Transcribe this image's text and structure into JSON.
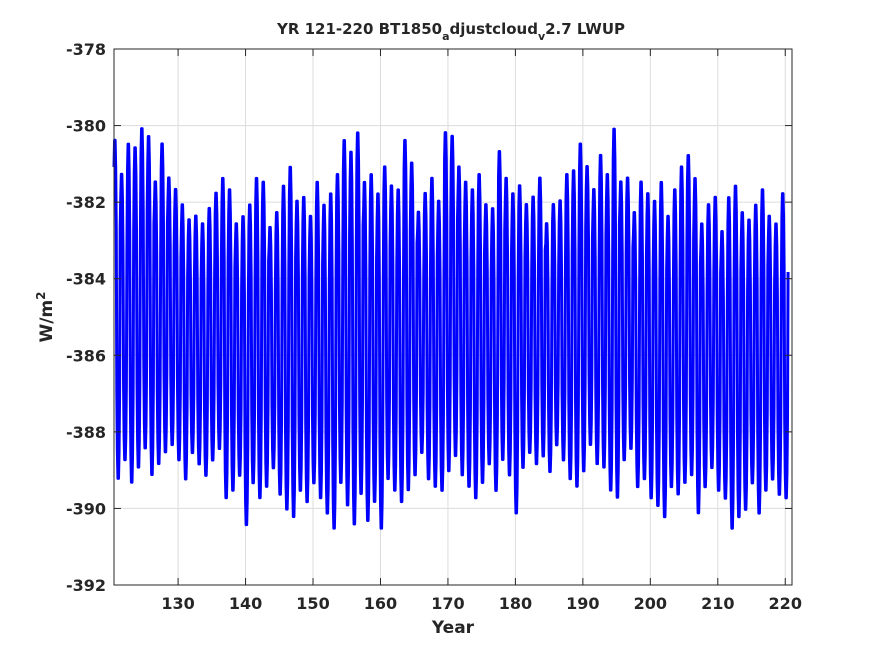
{
  "chart_data": {
    "type": "line",
    "title": {
      "main": "YR 121-220 BT1850",
      "sub1": "a",
      "mid": "djustcloud",
      "sub2": "v",
      "tail": "2.7 LWUP"
    },
    "xlabel": "Year",
    "ylabel": {
      "base": "W/m",
      "sup": "2"
    },
    "xlim": [
      120.5,
      221
    ],
    "ylim": [
      -392,
      -378
    ],
    "xticks": [
      130,
      140,
      150,
      160,
      170,
      180,
      190,
      200,
      210,
      220
    ],
    "xtick_labels": [
      "130",
      "140",
      "150",
      "160",
      "170",
      "180",
      "190",
      "200",
      "210",
      "220"
    ],
    "yticks": [
      -392,
      -390,
      -388,
      -386,
      -384,
      -382,
      -380,
      -378
    ],
    "ytick_labels": [
      "-392",
      "-390",
      "-388",
      "-386",
      "-384",
      "-382",
      "-380",
      "-378"
    ],
    "grid": true,
    "series_color": "#0000ff",
    "series": [
      {
        "note_frequency": "monthly",
        "x_start": 120.5,
        "annual_peaks": [
          -380.3,
          -381.2,
          -380.4,
          -380.5,
          -380.0,
          -380.2,
          -381.4,
          -380.4,
          -381.3,
          -381.6,
          -382.0,
          -382.4,
          -382.3,
          -382.5,
          -382.1,
          -381.7,
          -381.3,
          -381.6,
          -382.5,
          -382.3,
          -382.0,
          -381.3,
          -381.4,
          -382.6,
          -382.2,
          -381.5,
          -381.0,
          -381.9,
          -381.8,
          -382.3,
          -381.4,
          -382.0,
          -381.7,
          -381.2,
          -380.3,
          -380.6,
          -380.1,
          -381.4,
          -381.2,
          -381.7,
          -381.0,
          -381.5,
          -381.6,
          -380.3,
          -380.9,
          -382.2,
          -381.7,
          -381.3,
          -381.9,
          -380.1,
          -380.2,
          -381.0,
          -381.4,
          -381.6,
          -381.2,
          -382.0,
          -382.1,
          -380.6,
          -381.3,
          -381.7,
          -381.5,
          -382.0,
          -381.8,
          -381.3,
          -382.5,
          -382.0,
          -381.9,
          -381.2,
          -381.1,
          -380.4,
          -381.0,
          -381.6,
          -380.7,
          -381.2,
          -380.0,
          -381.4,
          -381.3,
          -382.2,
          -381.4,
          -381.7,
          -381.9,
          -381.4,
          -382.3,
          -381.6,
          -381.0,
          -380.7,
          -381.3,
          -382.5,
          -382.0,
          -381.8,
          -382.7,
          -381.8,
          -381.5,
          -382.2,
          -382.4,
          -382.0,
          -381.6,
          -382.3,
          -382.5,
          -381.7
        ],
        "annual_troughs": [
          -389.3,
          -388.8,
          -389.4,
          -389.0,
          -388.5,
          -389.2,
          -388.9,
          -388.6,
          -388.4,
          -388.8,
          -389.3,
          -388.6,
          -388.9,
          -389.2,
          -388.8,
          -388.5,
          -389.8,
          -389.6,
          -389.2,
          -390.5,
          -389.4,
          -389.8,
          -389.5,
          -389.0,
          -389.7,
          -390.1,
          -390.3,
          -389.6,
          -389.9,
          -389.4,
          -389.8,
          -390.2,
          -390.6,
          -389.4,
          -390.0,
          -390.5,
          -389.7,
          -390.4,
          -389.9,
          -390.6,
          -389.3,
          -389.6,
          -389.9,
          -389.6,
          -389.2,
          -388.6,
          -389.3,
          -389.5,
          -389.6,
          -389.1,
          -388.7,
          -389.2,
          -389.5,
          -389.8,
          -389.4,
          -388.9,
          -389.6,
          -388.8,
          -389.2,
          -390.2,
          -389.0,
          -388.6,
          -388.9,
          -388.7,
          -389.1,
          -388.4,
          -388.8,
          -389.3,
          -389.5,
          -389.1,
          -388.4,
          -388.9,
          -389.0,
          -389.6,
          -389.8,
          -388.8,
          -388.5,
          -389.5,
          -389.3,
          -389.8,
          -390.0,
          -390.3,
          -389.5,
          -389.7,
          -389.4,
          -389.2,
          -390.2,
          -389.5,
          -389.0,
          -389.6,
          -389.8,
          -390.6,
          -390.3,
          -390.1,
          -389.4,
          -390.2,
          -389.6,
          -389.3,
          -389.7,
          -389.8
        ]
      }
    ]
  }
}
